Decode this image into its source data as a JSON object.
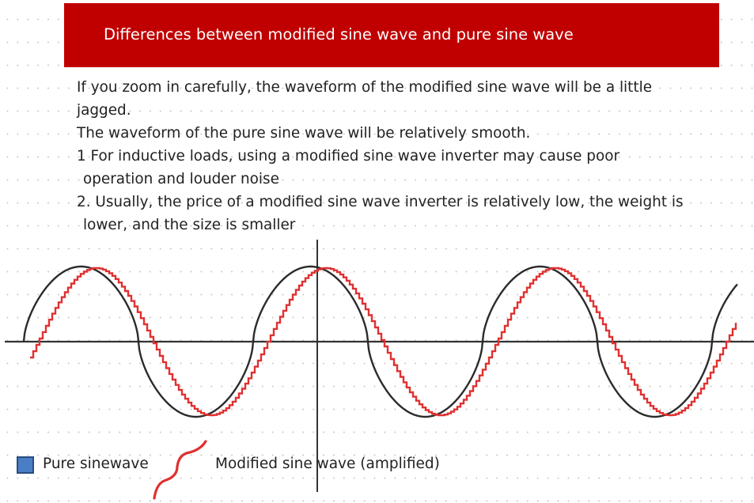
{
  "header": {
    "title": "Differences between modified sine wave and pure sine wave"
  },
  "body": {
    "lines": [
      "If you zoom in carefully, the waveform of the modified sine wave will be a little",
      "jagged.",
      "The waveform of the pure sine wave will be relatively smooth.",
      "1 For inductive loads, using a modified sine wave inverter may cause poor",
      "operation and louder noise",
      "2. Usually, the price of a modified sine wave inverter is relatively low, the weight is",
      "lower, and the size is smaller"
    ]
  },
  "legend": {
    "pure_label": "Pure sinewave",
    "modified_label": "Modified sine wave (amplified)"
  },
  "colors": {
    "banner": "#c00000",
    "pure_wave": "#2b2b2b",
    "modified_wave": "#e03030",
    "axis": "#333333",
    "legend_swatch": "#4a7ec4"
  }
}
